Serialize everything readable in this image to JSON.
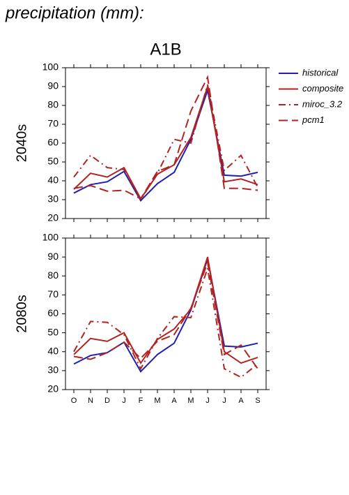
{
  "heading": "precipitation (mm):",
  "chart_data": [
    {
      "type": "line",
      "title": "A1B",
      "ylabel": "2040s",
      "legend": "outside right",
      "ylim": [
        20,
        100
      ],
      "yticks": [
        20,
        30,
        40,
        50,
        60,
        70,
        80,
        90,
        100
      ],
      "series": [
        {
          "name": "historical",
          "color": "#2020b0",
          "style": "solid",
          "values": [
            33.5,
            38,
            39.5,
            45,
            29.5,
            38.5,
            44.5,
            62,
            88,
            43,
            42.5,
            44.5
          ]
        },
        {
          "name": "composite",
          "color": "#b22222",
          "style": "solid",
          "values": [
            35.5,
            44,
            42,
            47,
            30.5,
            43.5,
            48.5,
            63,
            90,
            39.5,
            41,
            38
          ]
        },
        {
          "name": "miroc_3.2",
          "color": "#b22222",
          "style": "dashdot",
          "values": [
            42,
            53.5,
            47,
            46,
            30,
            44,
            62,
            60,
            91,
            45.5,
            53.5,
            36.5
          ]
        },
        {
          "name": "pcm1",
          "color": "#b22222",
          "style": "dashed",
          "values": [
            36,
            37.5,
            34.5,
            35,
            30.5,
            45,
            48.5,
            77,
            95,
            36,
            36,
            35
          ]
        }
      ]
    },
    {
      "type": "line",
      "ylabel": "2080s",
      "categories": [
        "O",
        "N",
        "D",
        "J",
        "F",
        "M",
        "A",
        "M",
        "J",
        "J",
        "A",
        "S"
      ],
      "ylim": [
        20,
        100
      ],
      "yticks": [
        20,
        30,
        40,
        50,
        60,
        70,
        80,
        90,
        100
      ],
      "series": [
        {
          "color": "#2020b0",
          "style": "solid",
          "values": [
            33.5,
            38,
            39.5,
            45,
            29.5,
            38.5,
            44.5,
            62,
            89,
            43,
            42.5,
            44.5
          ]
        },
        {
          "color": "#b22222",
          "style": "solid",
          "values": [
            38.5,
            47,
            45.5,
            50,
            34,
            46.5,
            52,
            62.5,
            90,
            40,
            34,
            37
          ]
        },
        {
          "color": "#b22222",
          "style": "dashdot",
          "values": [
            40,
            56,
            55.5,
            49,
            31,
            47,
            58.5,
            58,
            84,
            31,
            26.5,
            33.5
          ]
        },
        {
          "color": "#b22222",
          "style": "dashed",
          "values": [
            37.5,
            36,
            39.5,
            45,
            36.5,
            45.5,
            49,
            63,
            87,
            38.5,
            43.5,
            31
          ]
        }
      ]
    }
  ]
}
